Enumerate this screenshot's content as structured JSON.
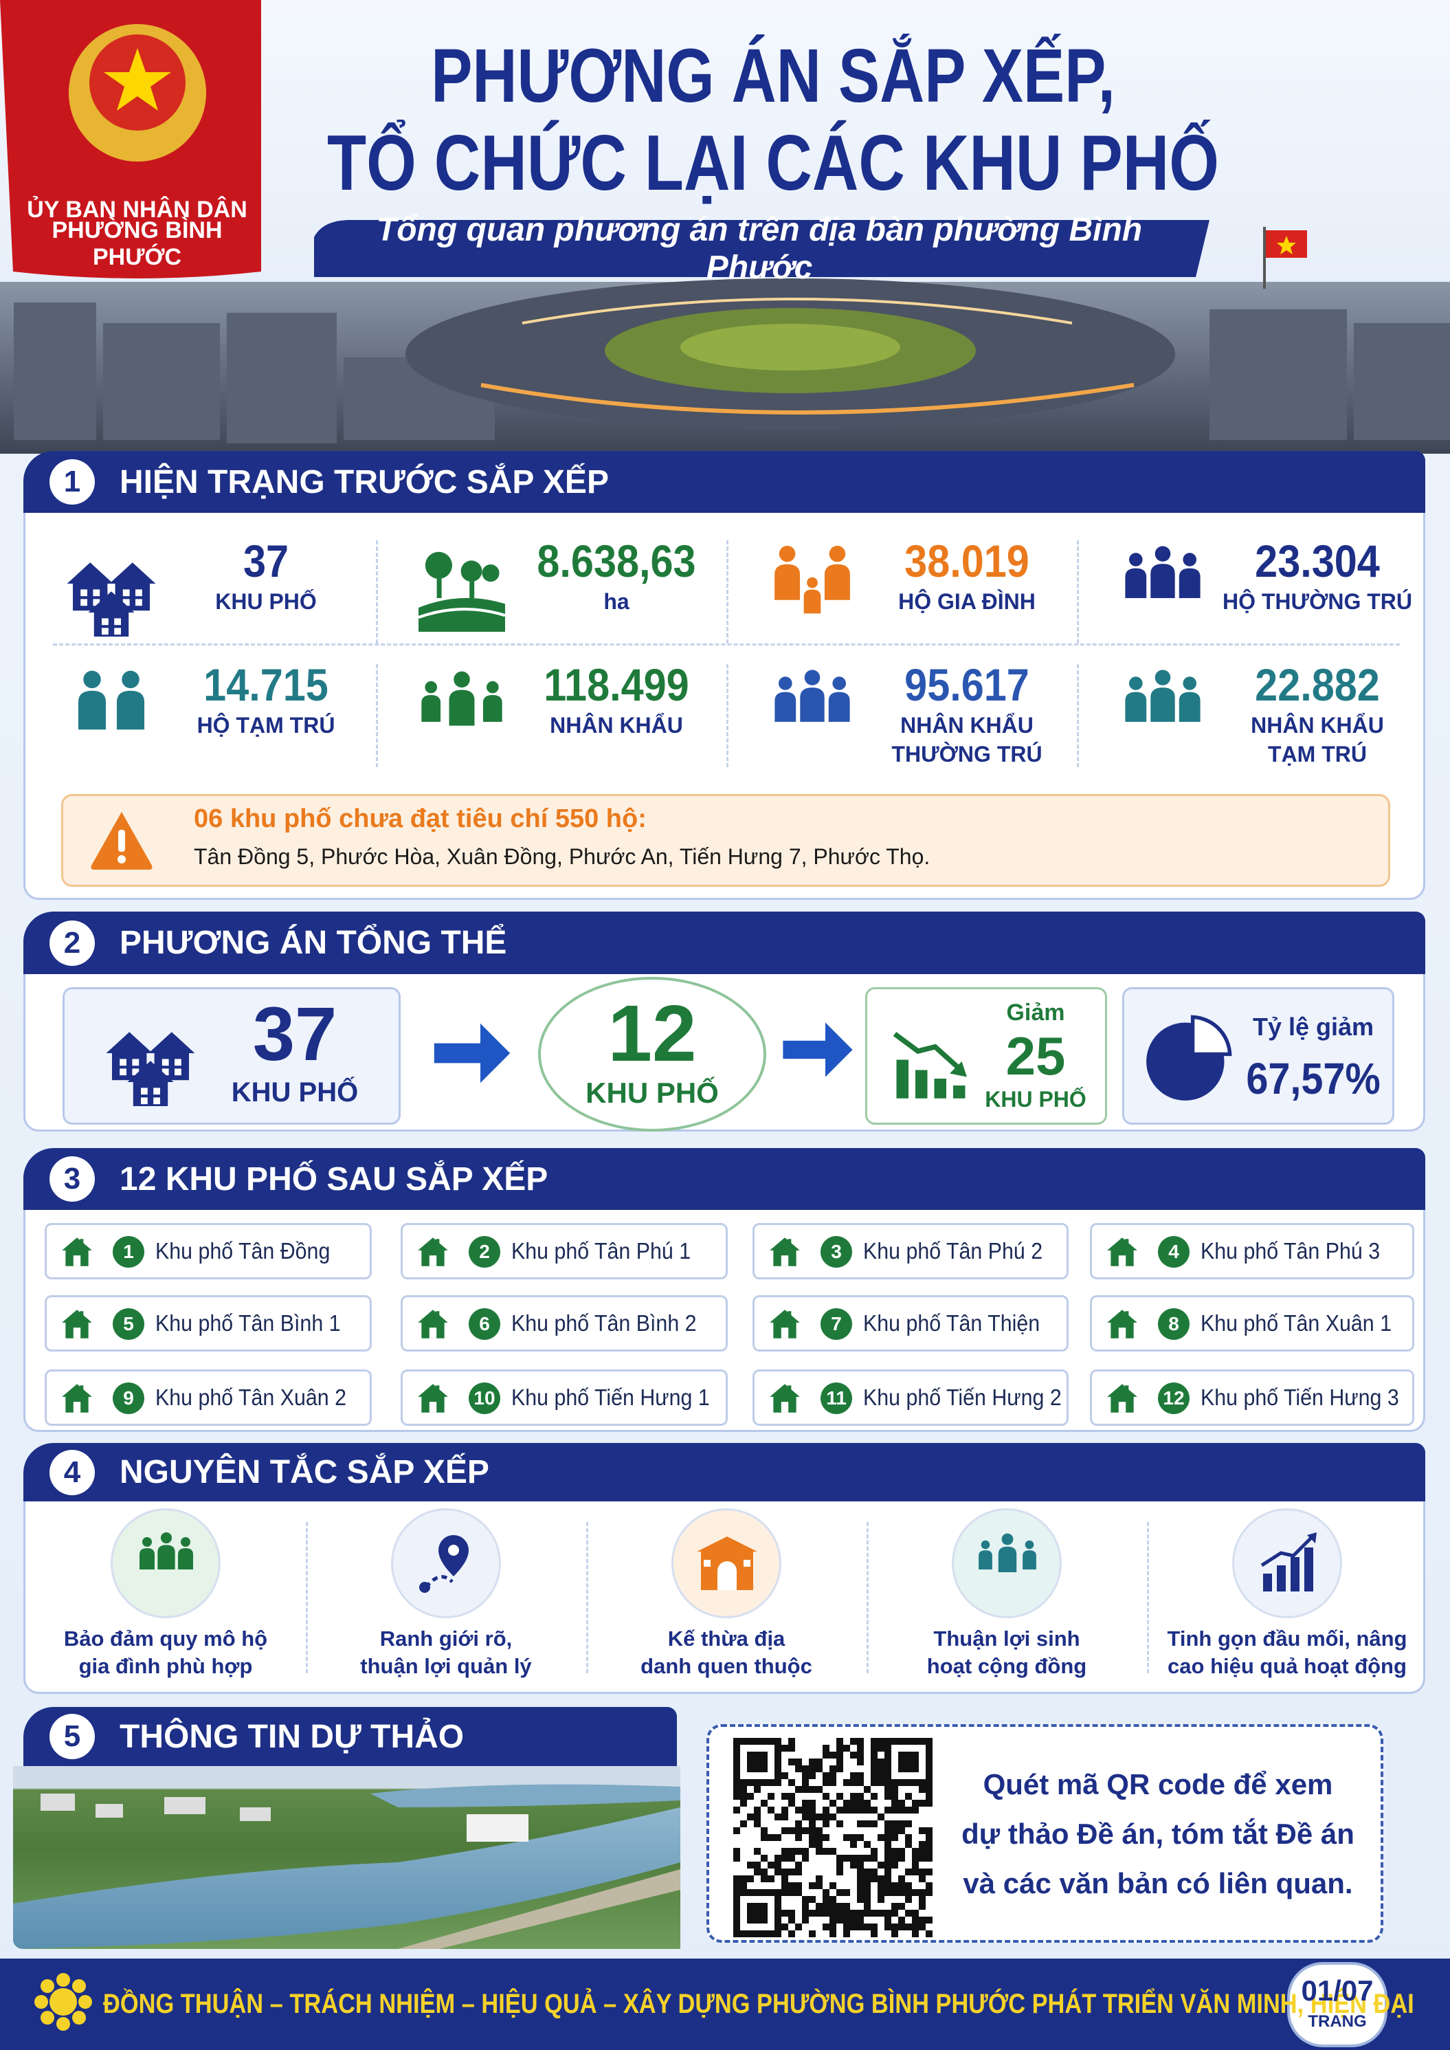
{
  "header": {
    "org_line1": "ỦY BAN NHÂN DÂN",
    "org_line2": "PHƯỜNG BÌNH PHƯỚC",
    "title_line1": "PHƯƠNG ÁN SẮP XẾP,",
    "title_line2": "TỔ CHỨC LẠI CÁC KHU PHỐ",
    "subtitle": "Tổng quan phương án trên địa bàn phường Bình Phước"
  },
  "section1": {
    "number": "1",
    "title": "HIỆN TRẠNG TRƯỚC SẮP XẾP",
    "stats": [
      {
        "value": "37",
        "label": "KHU PHỐ"
      },
      {
        "value": "8.638,63",
        "label": "ha"
      },
      {
        "value": "38.019",
        "label": "HỘ GIA ĐÌNH"
      },
      {
        "value": "23.304",
        "label": "HỘ THƯỜNG TRÚ"
      },
      {
        "value": "14.715",
        "label": "HỘ TẠM TRÚ"
      },
      {
        "value": "118.499",
        "label": "NHÂN KHẨU"
      },
      {
        "value": "95.617",
        "label": "NHÂN KHẨU THƯỜNG TRÚ"
      },
      {
        "value": "22.882",
        "label": "NHÂN KHẨU TẠM TRÚ"
      }
    ],
    "warning": {
      "title": "06 khu phố chưa đạt tiêu chí 550 hộ:",
      "text": "Tân Đồng 5, Phước Hòa, Xuân Đồng, Phước An, Tiến Hưng 7, Phước Thọ."
    }
  },
  "section2": {
    "number": "2",
    "title": "PHƯƠNG ÁN TỔNG THỂ",
    "before": {
      "value": "37",
      "label": "KHU PHỐ"
    },
    "after": {
      "value": "12",
      "label": "KHU PHỐ"
    },
    "reduction": {
      "prefix": "Giảm",
      "value": "25",
      "label": "KHU PHỐ"
    },
    "ratio": {
      "label": "Tỷ lệ giảm",
      "value": "67,57%"
    }
  },
  "section3": {
    "number": "3",
    "title": "12 KHU PHỐ SAU SẮP XẾP",
    "items": [
      {
        "number": "1",
        "name": "Khu phố Tân Đồng"
      },
      {
        "number": "2",
        "name": "Khu phố Tân Phú 1"
      },
      {
        "number": "3",
        "name": "Khu phố Tân Phú 2"
      },
      {
        "number": "4",
        "name": "Khu phố Tân Phú 3"
      },
      {
        "number": "5",
        "name": "Khu phố Tân Bình 1"
      },
      {
        "number": "6",
        "name": "Khu phố Tân Bình 2"
      },
      {
        "number": "7",
        "name": "Khu phố Tân Thiện"
      },
      {
        "number": "8",
        "name": "Khu phố Tân Xuân 1"
      },
      {
        "number": "9",
        "name": "Khu phố Tân Xuân 2"
      },
      {
        "number": "10",
        "name": "Khu phố Tiến Hưng 1"
      },
      {
        "number": "11",
        "name": "Khu phố Tiến Hưng 2"
      },
      {
        "number": "12",
        "name": "Khu phố Tiến Hưng 3"
      }
    ]
  },
  "section4": {
    "number": "4",
    "title": "NGUYÊN TẮC SẮP XẾP",
    "principles": [
      "Bảo đảm quy mô hộ gia đình phù hợp",
      "Ranh giới rõ, thuận lợi quản lý",
      "Kế thừa địa danh quen thuộc",
      "Thuận lợi sinh hoạt cộng đồng",
      "Tinh gọn đầu mối, nâng cao hiệu quả hoạt động"
    ]
  },
  "section5": {
    "number": "5",
    "title": "THÔNG TIN DỰ THẢO",
    "qr_text": "Quét mã QR code để xem dự thảo Đề án, tóm tắt Đề án và các văn bản có liên quan."
  },
  "footer": {
    "slogan": "ĐỒNG THUẬN – TRÁCH NHIỆM – HIỆU QUẢ – XÂY DỰNG PHƯỜNG BÌNH PHƯỚC PHÁT TRIỂN VĂN MINH, HIỆN ĐẠI",
    "page": "01/07",
    "page_label": "TRANG"
  }
}
